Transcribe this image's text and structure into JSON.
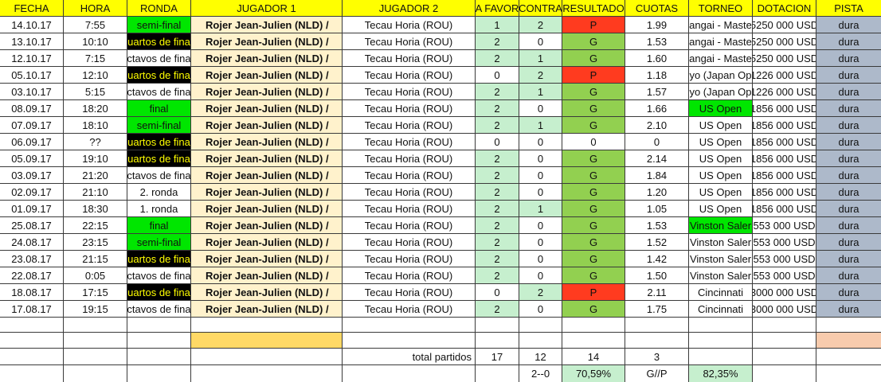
{
  "table": {
    "header": [
      "FECHA",
      "HORA",
      "RONDA",
      "JUGADOR 1",
      "JUGADOR 2",
      "A FAVOR",
      "CONTRA",
      "RESULTADO",
      "CUOTAS",
      "TORNEO",
      "DOTACION",
      "PISTA"
    ],
    "rows": [
      [
        "14.10.17",
        "7:55",
        "semi-final",
        "Rojer Jean-Julien (NLD) /",
        "Tecau Horia (ROU)",
        "1",
        "2",
        "P",
        "1.99",
        "angai - Maste",
        "5250 000 USD",
        "dura"
      ],
      [
        "13.10.17",
        "10:10",
        "uartos de fina",
        "Rojer Jean-Julien (NLD) /",
        "Tecau Horia (ROU)",
        "2",
        "0",
        "G",
        "1.53",
        "angai - Maste",
        "5250 000 USD",
        "dura"
      ],
      [
        "12.10.17",
        "7:15",
        "ctavos de fina",
        "Rojer Jean-Julien (NLD) /",
        "Tecau Horia (ROU)",
        "2",
        "1",
        "G",
        "1.60",
        "angai - Maste",
        "5250 000 USD",
        "dura"
      ],
      [
        "05.10.17",
        "12:10",
        "uartos de fina",
        "Rojer Jean-Julien (NLD) /",
        "Tecau Horia (ROU)",
        "0",
        "2",
        "P",
        "1.18",
        "yo (Japan Op",
        "1226 000 USD",
        "dura"
      ],
      [
        "03.10.17",
        "5:15",
        "ctavos de fina",
        "Rojer Jean-Julien (NLD) /",
        "Tecau Horia (ROU)",
        "2",
        "1",
        "G",
        "1.57",
        "yo (Japan Op",
        "1226 000 USD",
        "dura"
      ],
      [
        "08.09.17",
        "18:20",
        "final",
        "Rojer Jean-Julien (NLD) /",
        "Tecau Horia (ROU)",
        "2",
        "0",
        "G",
        "1.66",
        "US Open",
        "1856 000 USD",
        "dura"
      ],
      [
        "07.09.17",
        "18:10",
        "semi-final",
        "Rojer Jean-Julien (NLD) /",
        "Tecau Horia (ROU)",
        "2",
        "1",
        "G",
        "2.10",
        "US Open",
        "1856 000 USD",
        "dura"
      ],
      [
        "06.09.17",
        "??",
        "uartos de fina",
        "Rojer Jean-Julien (NLD) /",
        "Tecau Horia (ROU)",
        "0",
        "0",
        "0",
        "0",
        "US Open",
        "1856 000 USD",
        "dura"
      ],
      [
        "05.09.17",
        "19:10",
        "uartos de fina",
        "Rojer Jean-Julien (NLD) /",
        "Tecau Horia (ROU)",
        "2",
        "0",
        "G",
        "2.14",
        "US Open",
        "1856 000 USD",
        "dura"
      ],
      [
        "03.09.17",
        "21:20",
        "ctavos de fina",
        "Rojer Jean-Julien (NLD) /",
        "Tecau Horia (ROU)",
        "2",
        "0",
        "G",
        "1.84",
        "US Open",
        "1856 000 USD",
        "dura"
      ],
      [
        "02.09.17",
        "21:10",
        "2. ronda",
        "Rojer Jean-Julien (NLD) /",
        "Tecau Horia (ROU)",
        "2",
        "0",
        "G",
        "1.20",
        "US Open",
        "1856 000 USD",
        "dura"
      ],
      [
        "01.09.17",
        "18:30",
        "1. ronda",
        "Rojer Jean-Julien (NLD) /",
        "Tecau Horia (ROU)",
        "2",
        "1",
        "G",
        "1.05",
        "US Open",
        "1856 000 USD",
        "dura"
      ],
      [
        "25.08.17",
        "22:15",
        "final",
        "Rojer Jean-Julien (NLD) /",
        "Tecau Horia (ROU)",
        "2",
        "0",
        "G",
        "1.53",
        "Vinston Saler",
        "553 000 USD",
        "dura"
      ],
      [
        "24.08.17",
        "23:15",
        "semi-final",
        "Rojer Jean-Julien (NLD) /",
        "Tecau Horia (ROU)",
        "2",
        "0",
        "G",
        "1.52",
        "Vinston Saler",
        "553 000 USD",
        "dura"
      ],
      [
        "23.08.17",
        "21:15",
        "uartos de fina",
        "Rojer Jean-Julien (NLD) /",
        "Tecau Horia (ROU)",
        "2",
        "0",
        "G",
        "1.42",
        "Vinston Saler",
        "553 000 USD",
        "dura"
      ],
      [
        "22.08.17",
        "0:05",
        "ctavos de fina",
        "Rojer Jean-Julien (NLD) /",
        "Tecau Horia (ROU)",
        "2",
        "0",
        "G",
        "1.50",
        "Vinston Saler",
        "553 000 USD",
        "dura"
      ],
      [
        "18.08.17",
        "17:15",
        "uartos de fina",
        "Rojer Jean-Julien (NLD) /",
        "Tecau Horia (ROU)",
        "0",
        "2",
        "P",
        "2.11",
        "Cincinnati",
        "3000 000 USD",
        "dura"
      ],
      [
        "17.08.17",
        "19:15",
        "ctavos de fina",
        "Rojer Jean-Julien (NLD) /",
        "Tecau Horia (ROU)",
        "2",
        "0",
        "G",
        "1.75",
        "Cincinnati",
        "3000 000 USD",
        "dura"
      ]
    ],
    "totals": {
      "label": "total partidos",
      "a_favor": "17",
      "contra": "12",
      "resultado": "14",
      "cuotas": "3"
    },
    "summary": {
      "contra": "2--0",
      "resultado": "70,59%",
      "cuotas": "G//P",
      "torneo": "82,35%"
    }
  }
}
